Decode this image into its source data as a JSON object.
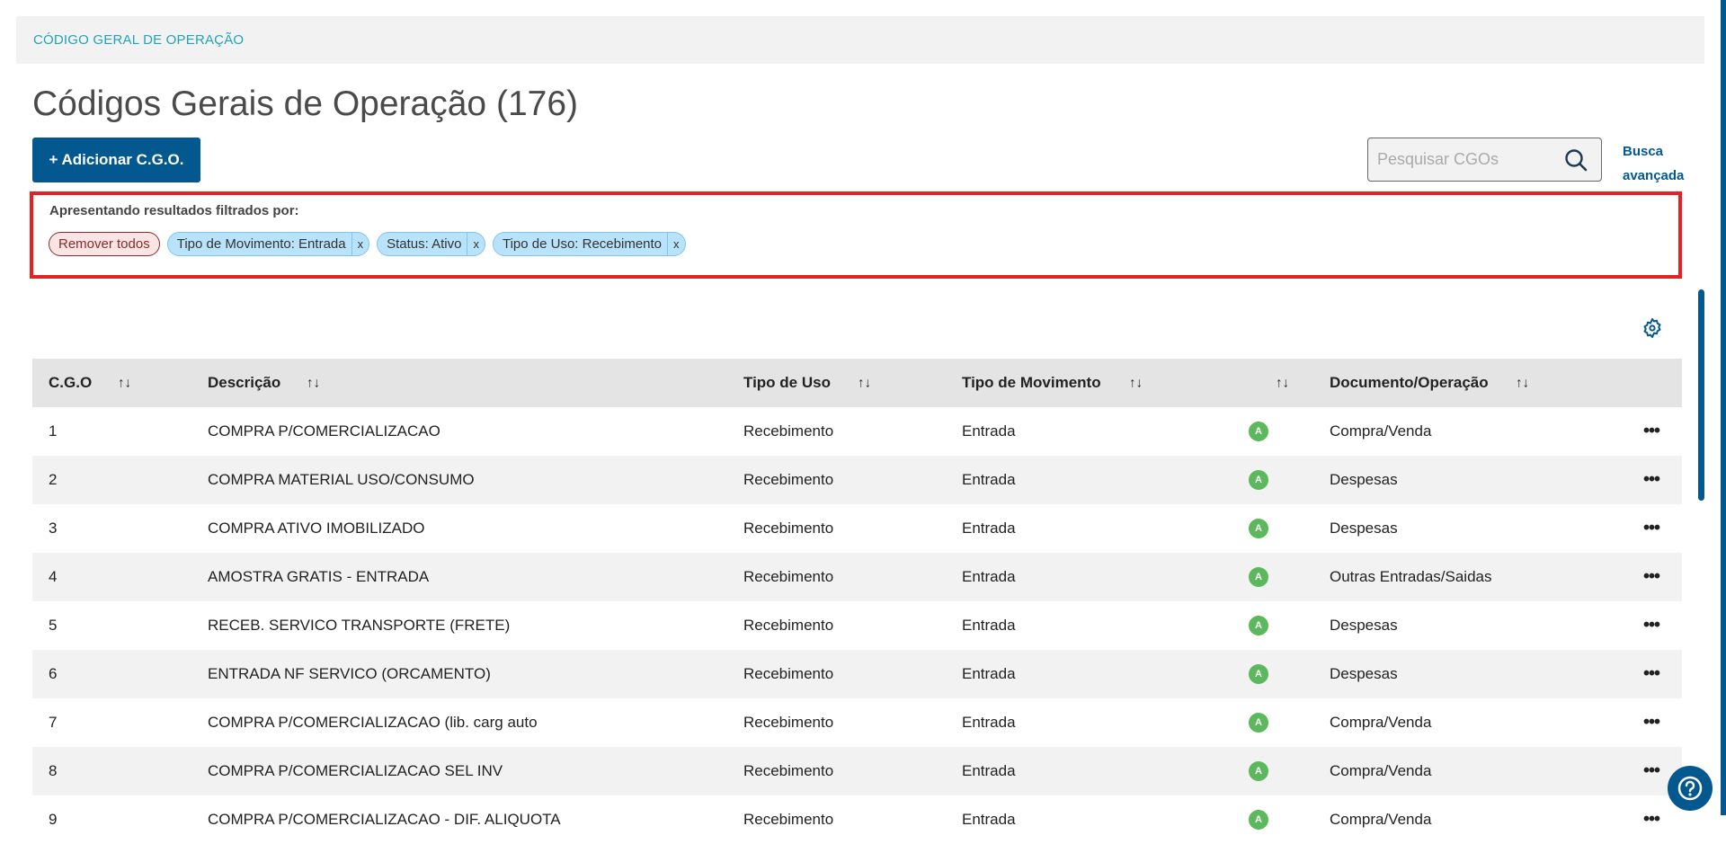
{
  "breadcrumb": "CÓDIGO GERAL DE OPERAÇÃO",
  "page_title": "Códigos Gerais de Operação (176)",
  "add_button": "+ Adicionar C.G.O.",
  "search": {
    "placeholder": "Pesquisar CGOs",
    "value": ""
  },
  "advanced_search": [
    "Busca",
    "avançada"
  ],
  "filters": {
    "label": "Apresentando resultados filtrados por:",
    "remove_all": "Remover todos",
    "chips": [
      {
        "label": "Tipo de Movimento: Entrada",
        "close": "x"
      },
      {
        "label": "Status: Ativo",
        "close": "x"
      },
      {
        "label": "Tipo de Uso: Recebimento",
        "close": "x"
      }
    ]
  },
  "table": {
    "columns": [
      "C.G.O",
      "Descrição",
      "Tipo de Uso",
      "Tipo de Movimento",
      "",
      "Documento/Operação"
    ],
    "sort_icon": "↑↓",
    "status_badge_color": "#5cb85c",
    "rows": [
      {
        "cgo": "1",
        "desc": "COMPRA P/COMERCIALIZACAO",
        "uso": "Recebimento",
        "mov": "Entrada",
        "status": "A",
        "doc": "Compra/Venda",
        "menu": "•••"
      },
      {
        "cgo": "2",
        "desc": "COMPRA MATERIAL USO/CONSUMO",
        "uso": "Recebimento",
        "mov": "Entrada",
        "status": "A",
        "doc": "Despesas",
        "menu": "•••"
      },
      {
        "cgo": "3",
        "desc": "COMPRA ATIVO IMOBILIZADO",
        "uso": "Recebimento",
        "mov": "Entrada",
        "status": "A",
        "doc": "Despesas",
        "menu": "•••"
      },
      {
        "cgo": "4",
        "desc": "AMOSTRA GRATIS - ENTRADA",
        "uso": "Recebimento",
        "mov": "Entrada",
        "status": "A",
        "doc": "Outras Entradas/Saidas",
        "menu": "•••"
      },
      {
        "cgo": "5",
        "desc": "RECEB. SERVICO TRANSPORTE (FRETE)",
        "uso": "Recebimento",
        "mov": "Entrada",
        "status": "A",
        "doc": "Despesas",
        "menu": "•••"
      },
      {
        "cgo": "6",
        "desc": "ENTRADA NF SERVICO (ORCAMENTO)",
        "uso": "Recebimento",
        "mov": "Entrada",
        "status": "A",
        "doc": "Despesas",
        "menu": "•••"
      },
      {
        "cgo": "7",
        "desc": "COMPRA P/COMERCIALIZACAO (lib. carg auto",
        "uso": "Recebimento",
        "mov": "Entrada",
        "status": "A",
        "doc": "Compra/Venda",
        "menu": "•••"
      },
      {
        "cgo": "8",
        "desc": "COMPRA P/COMERCIALIZACAO SEL INV",
        "uso": "Recebimento",
        "mov": "Entrada",
        "status": "A",
        "doc": "Compra/Venda",
        "menu": "•••"
      },
      {
        "cgo": "9",
        "desc": "COMPRA P/COMERCIALIZACAO - DIF. ALIQUOTA",
        "uso": "Recebimento",
        "mov": "Entrada",
        "status": "A",
        "doc": "Compra/Venda",
        "menu": "•••"
      }
    ]
  },
  "colors": {
    "primary": "#03598f",
    "breadcrumb": "#1fa5b8",
    "highlight_box": "#e52222",
    "chip": "#b9e2fb"
  }
}
